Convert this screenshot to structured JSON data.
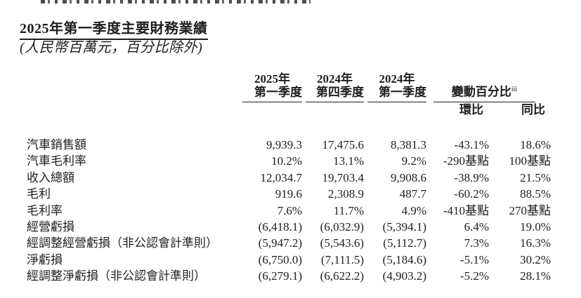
{
  "document": {
    "title": "2025年第一季度主要財務業績",
    "subtitle": "(人民幣百萬元，百分比除外)"
  },
  "table": {
    "period_headers": [
      {
        "year": "2025年",
        "quarter": "第一季度"
      },
      {
        "year": "2024年",
        "quarter": "第四季度"
      },
      {
        "year": "2024年",
        "quarter": "第一季度"
      }
    ],
    "change_header": {
      "label": "變動百分比",
      "superscript": "iii",
      "qoq_label": "環比",
      "yoy_label": "同比"
    },
    "rows": [
      {
        "label": "汽車銷售額",
        "q1_2025": "9,939.3",
        "q4_2024": "17,475.6",
        "q1_2024": "8,381.3",
        "qoq": "-43.1%",
        "yoy": "18.6%"
      },
      {
        "label": "汽車毛利率",
        "q1_2025": "10.2%",
        "q4_2024": "13.1%",
        "q1_2024": "9.2%",
        "qoq": "-290基點",
        "yoy": "100基點"
      },
      {
        "label": "收入總額",
        "q1_2025": "12,034.7",
        "q4_2024": "19,703.4",
        "q1_2024": "9,908.6",
        "qoq": "-38.9%",
        "yoy": "21.5%"
      },
      {
        "label": "毛利",
        "q1_2025": "919.6",
        "q4_2024": "2,308.9",
        "q1_2024": "487.7",
        "qoq": "-60.2%",
        "yoy": "88.5%"
      },
      {
        "label": "毛利率",
        "q1_2025": "7.6%",
        "q4_2024": "11.7%",
        "q1_2024": "4.9%",
        "qoq": "-410基點",
        "yoy": "270基點"
      },
      {
        "label": "經營虧損",
        "q1_2025": "(6,418.1)",
        "q4_2024": "(6,032.9)",
        "q1_2024": "(5,394.1)",
        "qoq": "6.4%",
        "yoy": "19.0%"
      },
      {
        "label": "經調整經營虧損（非公認會計準則）",
        "q1_2025": "(5,947.2)",
        "q4_2024": "(5,543.6)",
        "q1_2024": "(5,112.7)",
        "qoq": "7.3%",
        "yoy": "16.3%"
      },
      {
        "label": "淨虧損",
        "q1_2025": "(6,750.0)",
        "q4_2024": "(7,111.5)",
        "q1_2024": "(5,184.6)",
        "qoq": "-5.1%",
        "yoy": "30.2%"
      },
      {
        "label": "經調整淨虧損（非公認會計準則）",
        "q1_2025": "(6,279.1)",
        "q4_2024": "(6,622.2)",
        "q1_2024": "(4,903.2)",
        "qoq": "-5.2%",
        "yoy": "28.1%"
      }
    ]
  },
  "colors": {
    "text": "#1e1e1e",
    "background": "#ffffff"
  }
}
